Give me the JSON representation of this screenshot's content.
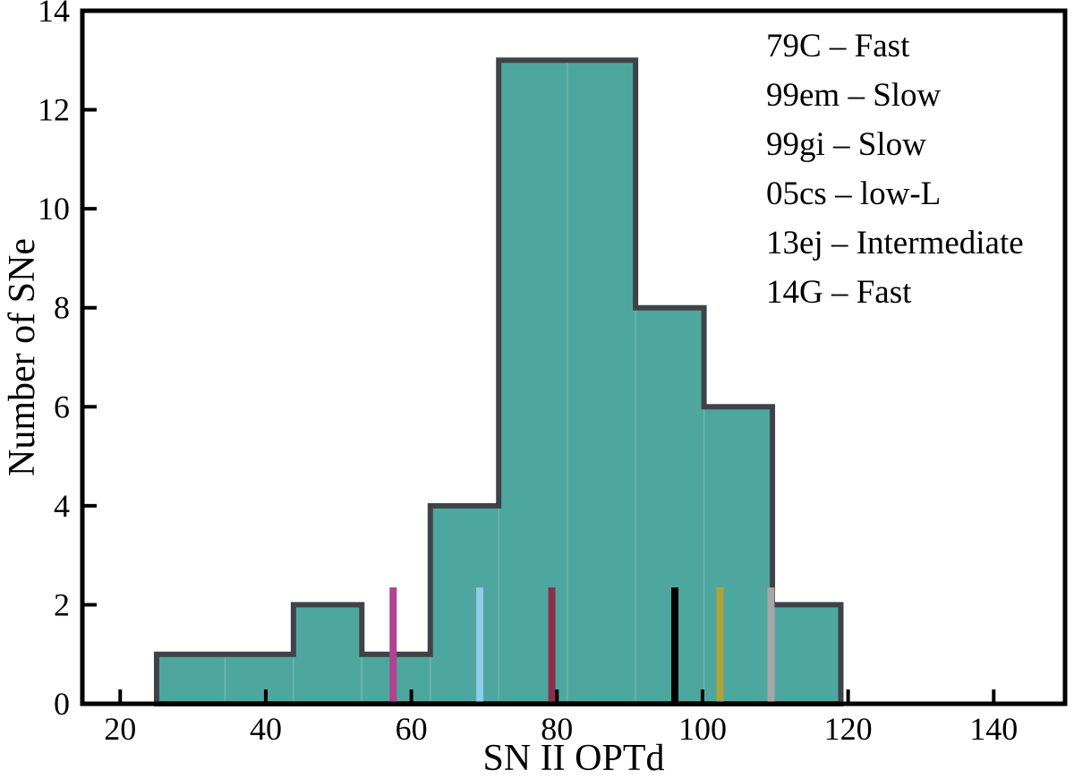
{
  "figure": {
    "background": "#ffffff"
  },
  "chart_data": {
    "type": "histogram",
    "title": "",
    "xlabel": "SN II OPTd",
    "ylabel": "Number of SNe",
    "xlim": [
      14.8,
      149.8
    ],
    "ylim": [
      0,
      14
    ],
    "x_ticks": [
      20,
      40,
      60,
      80,
      100,
      120,
      140
    ],
    "y_ticks": [
      0,
      2,
      4,
      6,
      8,
      10,
      12,
      14
    ],
    "grid": false,
    "bin_edges": [
      25.0,
      34.4,
      43.8,
      53.2,
      62.6,
      72.0,
      81.4,
      90.8,
      100.2,
      109.6,
      119.0
    ],
    "counts": [
      1,
      1,
      2,
      1,
      4,
      13,
      13,
      8,
      6,
      2
    ],
    "bar_fill": "#4EA79E",
    "bar_edge": "#3F4347",
    "markers": [
      {
        "label": "79C – Fast",
        "x": 57.5,
        "height": 2.35,
        "color": "#B2428E"
      },
      {
        "label": "99em – Slow",
        "x": 96.2,
        "height": 2.35,
        "color": "#000000"
      },
      {
        "label": "99gi – Slow",
        "x": 109.4,
        "height": 2.35,
        "color": "#A9A5A6"
      },
      {
        "label": "05cs – low-L",
        "x": 102.4,
        "height": 2.35,
        "color": "#B0A23C"
      },
      {
        "label": "13ej – Intermediate",
        "x": 69.4,
        "height": 2.35,
        "color": "#8FCBED"
      },
      {
        "label": "14G – Fast",
        "x": 79.3,
        "height": 2.35,
        "color": "#8E2D4D"
      }
    ],
    "legend": {
      "position": "upper-right",
      "entries": [
        {
          "text": "79C – Fast",
          "color": "#B2428E"
        },
        {
          "text": "99em – Slow",
          "color": "#000000"
        },
        {
          "text": "99gi – Slow",
          "color": "#A9A5A6"
        },
        {
          "text": "05cs – low-L",
          "color": "#B0A23C"
        },
        {
          "text": "13ej – Intermediate",
          "color": "#8FCBED"
        },
        {
          "text": "14G – Fast",
          "color": "#8E2D4D"
        }
      ]
    }
  }
}
